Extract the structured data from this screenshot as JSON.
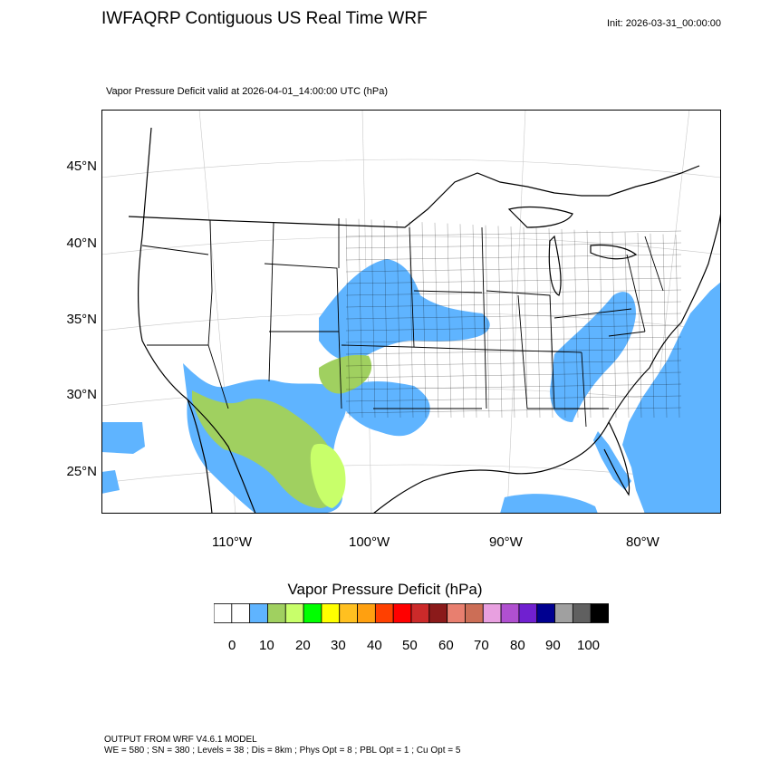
{
  "header": {
    "title": "IWFAQRP Contiguous US Real Time WRF",
    "init": "Init: 2026-03-31_00:00:00",
    "subtitle": "Vapor Pressure Deficit valid at 2026-04-01_14:00:00 UTC   (hPa)"
  },
  "map": {
    "lat_labels": [
      "45°N",
      "40°N",
      "35°N",
      "30°N",
      "25°N"
    ],
    "lon_labels": [
      "110°W",
      "100°W",
      "90°W",
      "80°W"
    ],
    "colors": {
      "ocean_low_vpd": "#5fb4ff",
      "land_0_5": "#ffffff",
      "vpd_15": "#a0d060",
      "vpd_20": "#c8ff6a",
      "boundary": "#000000",
      "graticule": "#c8c8c8"
    }
  },
  "colorbar": {
    "title": "Vapor Pressure Deficit  (hPa)",
    "colors": [
      "#ffffff",
      "#ffffff",
      "#5fb4ff",
      "#a0d060",
      "#c8ff6a",
      "#00ff00",
      "#ffff00",
      "#ffc020",
      "#ffa010",
      "#ff4000",
      "#ff0000",
      "#cc2a2a",
      "#8b1a1a",
      "#e87f6f",
      "#cc6e56",
      "#e8a0e0",
      "#b050d0",
      "#7020d0",
      "#000090",
      "#a0a0a0",
      "#606060",
      "#000000"
    ],
    "labels": [
      "0",
      "10",
      "20",
      "30",
      "40",
      "50",
      "60",
      "70",
      "80",
      "90",
      "100"
    ]
  },
  "footer": {
    "line1": "OUTPUT FROM WRF V4.6.1 MODEL",
    "line2": "WE = 580 ; SN = 380 ; Levels = 38 ; Dis = 8km ; Phys Opt = 8 ; PBL Opt = 1 ; Cu Opt = 5"
  }
}
